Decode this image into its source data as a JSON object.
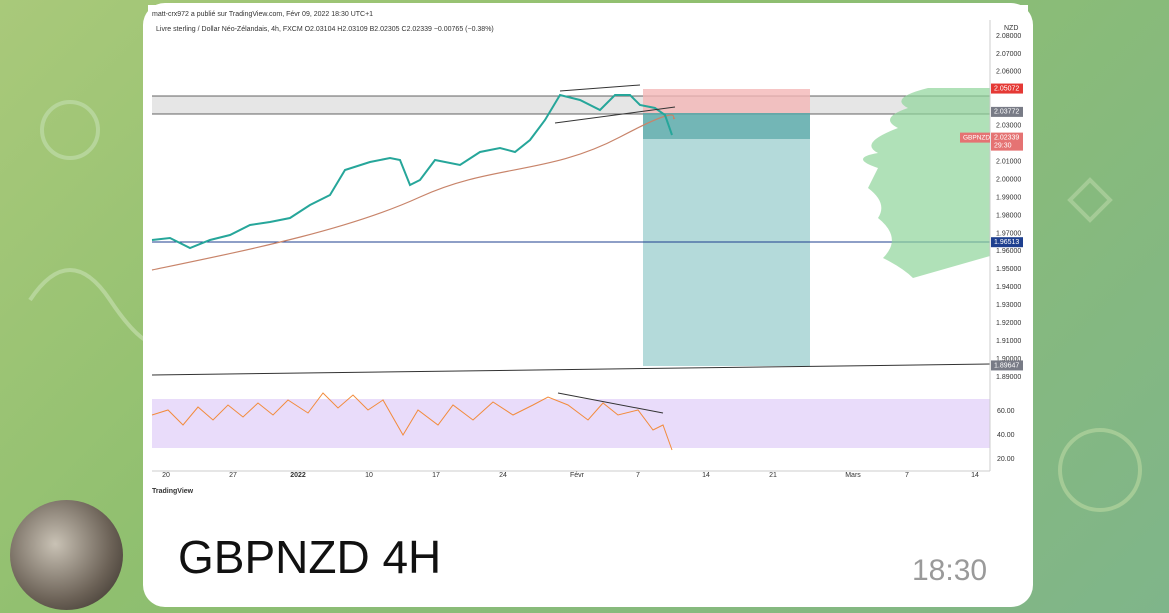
{
  "chart_image": {
    "author_line": "matt-crx972 a publié sur TradingView.com, Févr 09, 2022 18:30 UTC+1",
    "symbol_line": "Livre sterling / Dollar Néo-Zélandais, 4h, FXCM  O2.03104  H2.03109  B2.02305  C2.02339  −0.00765 (−0.38%)",
    "currency": "NZD",
    "price_labels": [
      "2.08000",
      "2.07000",
      "2.06000",
      "2.03000",
      "2.01000",
      "2.00000",
      "1.99000",
      "1.98000",
      "1.97000",
      "1.96000",
      "1.95000",
      "1.94000",
      "1.93000",
      "1.92000",
      "1.91000",
      "1.90000",
      "1.89000"
    ],
    "price_tags": [
      {
        "text": "2.05072",
        "color": "#e53935"
      },
      {
        "text": "2.03772",
        "color": "#787b86"
      },
      {
        "text": "1.96513",
        "color": "#1e3f8f"
      },
      {
        "text": "1.89647",
        "color": "#787b86"
      }
    ],
    "symbol_tag": {
      "name": "GBPNZD",
      "price": "2.02339",
      "countdown": "29:30"
    },
    "rsi_labels": [
      "60.00",
      "40.00",
      "20.00"
    ],
    "date_labels": [
      "20",
      "27",
      "2022",
      "10",
      "17",
      "24",
      "Févr",
      "7",
      "14",
      "21",
      "Mars",
      "7",
      "14"
    ],
    "branding": "TradingView"
  },
  "message": {
    "text": "GBPNZD 4H",
    "time": "18:30"
  }
}
